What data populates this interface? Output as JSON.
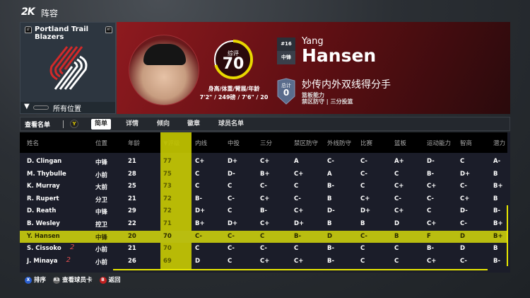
{
  "app": {
    "logo": "2K",
    "title": "阵容"
  },
  "team": {
    "name": "Portland Trail Blazers",
    "lb": "LT",
    "rb": "RT",
    "filter": "所有位置",
    "brand_color": "#c8102e"
  },
  "player": {
    "overall_label": "综评",
    "overall": "70",
    "overall_fraction": 0.7,
    "measure_label": "身高/体重/臂展/年龄",
    "measure_value": "7'2\" / 249磅 / 7'6\" / 20",
    "number": "#16",
    "position": "中锋",
    "first_name": "Yang",
    "last_name": "Hansen",
    "badge_label": "总计",
    "badge_count": "0",
    "archetype": "妙传内外双线得分手",
    "attr_line1": "篮板能力",
    "attr_line2a": "禁区防守",
    "attr_sep": "|",
    "attr_line2b": "三分投篮"
  },
  "tabs": {
    "view_label": "查看名单",
    "y_button": "Y",
    "items": [
      "简单",
      "详情",
      "倾向",
      "徽章",
      "球员名单"
    ],
    "active": 0
  },
  "table": {
    "headers": [
      "姓名",
      "位置",
      "年龄",
      "▼评级",
      "内线",
      "中投",
      "三分",
      "禁区防守",
      "外线防守",
      "比赛",
      "篮板",
      "运动能力",
      "智商",
      "潜力"
    ],
    "rows": [
      [
        "D. Clingan",
        "中锋",
        "21",
        "77",
        "C+",
        "D+",
        "C+",
        "A",
        "C-",
        "C-",
        "A+",
        "D-",
        "C",
        "A-"
      ],
      [
        "M. Thybulle",
        "小前",
        "28",
        "75",
        "C",
        "D-",
        "B+",
        "C+",
        "A",
        "C-",
        "C",
        "B-",
        "D+",
        "B"
      ],
      [
        "K. Murray",
        "大前",
        "25",
        "73",
        "C",
        "C",
        "C-",
        "C",
        "B-",
        "C",
        "C+",
        "C+",
        "C-",
        "B+"
      ],
      [
        "R. Rupert",
        "分卫",
        "21",
        "72",
        "B-",
        "C-",
        "C+",
        "C-",
        "B",
        "C+",
        "C-",
        "C-",
        "C+",
        "B"
      ],
      [
        "D. Reath",
        "中锋",
        "29",
        "72",
        "D+",
        "C",
        "B-",
        "C+",
        "D-",
        "D+",
        "C+",
        "C",
        "D-",
        "B-"
      ],
      [
        "B. Wesley",
        "控卫",
        "22",
        "71",
        "B+",
        "D+",
        "C+",
        "D+",
        "B",
        "B",
        "D",
        "C+",
        "C-",
        "B+"
      ],
      [
        "Y. Hansen",
        "中锋",
        "20",
        "70",
        "C-",
        "C-",
        "C",
        "B-",
        "D",
        "C-",
        "B",
        "F",
        "D",
        "B+"
      ],
      [
        "S. Cissoko",
        "小前",
        "21",
        "70",
        "C",
        "C-",
        "C-",
        "C",
        "B-",
        "C",
        "C",
        "B-",
        "D",
        "B"
      ],
      [
        "J. Minaya",
        "小前",
        "26",
        "69",
        "D",
        "C",
        "C+",
        "C+",
        "B-",
        "C",
        "C",
        "C+",
        "C-",
        "B-"
      ]
    ],
    "selected": 6,
    "two_way_marker": "2",
    "two_way_rows": [
      7,
      8
    ]
  },
  "hints": [
    {
      "btn": "X",
      "label": "排序",
      "color": "#2a5fd0"
    },
    {
      "btn": "R3",
      "label": "查看球员卡",
      "color": "#666"
    },
    {
      "btn": "B",
      "label": "返回",
      "color": "#c02020"
    }
  ],
  "colors": {
    "accent": "#d4d600",
    "card_red": "#8e1a1f"
  }
}
